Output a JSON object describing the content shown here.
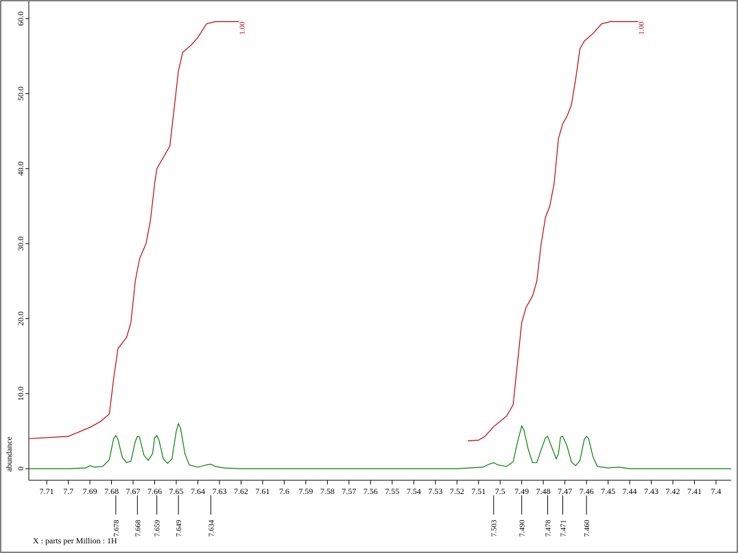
{
  "chart_data": {
    "type": "line",
    "x_label": "X : parts per Million : 1H",
    "y_label": "abundance",
    "xlim": [
      7.7183,
      7.393
    ],
    "ylim": [
      -1.55,
      62.3
    ],
    "xticks": [
      7.71,
      7.7,
      7.69,
      7.68,
      7.67,
      7.66,
      7.65,
      7.64,
      7.63,
      7.62,
      7.61,
      7.6,
      7.59,
      7.58,
      7.57,
      7.56,
      7.55,
      7.54,
      7.53,
      7.52,
      7.51,
      7.5,
      7.49,
      7.48,
      7.47,
      7.46,
      7.45,
      7.44,
      7.43,
      7.42,
      7.41,
      7.4
    ],
    "yticks": [
      0,
      {
        "value": 10,
        "label": "10.0"
      },
      {
        "value": 20,
        "label": "20.0"
      },
      {
        "value": 30,
        "label": "30.0"
      },
      {
        "value": 40,
        "label": "40.0"
      },
      {
        "value": 50,
        "label": "50.0"
      },
      {
        "value": 60,
        "label": "60.0"
      }
    ],
    "series": [
      {
        "color": "#008000",
        "x": [
          7.718,
          7.7,
          7.692,
          7.69,
          7.688,
          7.684,
          7.681,
          7.679,
          7.678,
          7.677,
          7.675,
          7.673,
          7.671,
          7.669,
          7.668,
          7.667,
          7.665,
          7.663,
          7.661,
          7.66,
          7.659,
          7.658,
          7.656,
          7.654,
          7.652,
          7.65,
          7.649,
          7.648,
          7.646,
          7.644,
          7.64,
          7.636,
          7.634,
          7.632,
          7.628,
          7.62,
          7.52,
          7.508,
          7.505,
          7.503,
          7.501,
          7.497,
          7.494,
          7.492,
          7.49,
          7.489,
          7.487,
          7.485,
          7.483,
          7.481,
          7.479,
          7.478,
          7.476,
          7.474,
          7.473,
          7.472,
          7.471,
          7.469,
          7.467,
          7.465,
          7.463,
          7.461,
          7.46,
          7.459,
          7.457,
          7.455,
          7.45,
          7.445,
          7.44,
          7.393
        ],
        "values": [
          0,
          0,
          0.1,
          0.4,
          0.2,
          0.3,
          1.2,
          4.0,
          4.4,
          3.9,
          1.5,
          0.8,
          1.0,
          3.6,
          4.3,
          4.2,
          1.8,
          1.1,
          2.0,
          4.1,
          4.4,
          3.8,
          1.3,
          0.7,
          1.3,
          5.0,
          6.0,
          5.4,
          2.0,
          0.5,
          0.2,
          0.5,
          0.6,
          0.3,
          0.1,
          0,
          0,
          0.2,
          0.6,
          0.8,
          0.5,
          0.3,
          0.9,
          3.5,
          5.7,
          5.2,
          2.6,
          0.8,
          0.8,
          2.5,
          4.1,
          4.3,
          2.8,
          1.3,
          2.0,
          4.2,
          4.3,
          3.0,
          0.9,
          0.4,
          1.1,
          3.9,
          4.3,
          4.0,
          1.6,
          0.3,
          0.1,
          0.2,
          0,
          0
        ]
      },
      {
        "color": "#c00000",
        "label": "1.00",
        "x": [
          7.718,
          7.7,
          7.69,
          7.685,
          7.681,
          7.679,
          7.677,
          7.673,
          7.671,
          7.669,
          7.667,
          7.664,
          7.662,
          7.66,
          7.659,
          7.656,
          7.653,
          7.651,
          7.649,
          7.647,
          7.643,
          7.64,
          7.636,
          7.632,
          7.621
        ],
        "values": [
          4.0,
          4.3,
          5.5,
          6.3,
          7.3,
          12,
          16,
          17.5,
          19.5,
          25,
          28,
          30,
          33,
          38,
          40,
          41.5,
          43,
          48,
          53,
          55.5,
          56.5,
          57.5,
          59.3,
          59.6,
          59.6
        ]
      },
      {
        "color": "#c00000",
        "label": "1.00",
        "x": [
          7.515,
          7.51,
          7.507,
          7.503,
          7.5,
          7.497,
          7.494,
          7.492,
          7.49,
          7.488,
          7.485,
          7.483,
          7.481,
          7.479,
          7.477,
          7.475,
          7.473,
          7.471,
          7.469,
          7.467,
          7.465,
          7.463,
          7.461,
          7.457,
          7.453,
          7.449,
          7.436
        ],
        "values": [
          3.7,
          3.8,
          4.3,
          5.6,
          6.3,
          7.0,
          8.5,
          14,
          19.5,
          21.5,
          23,
          25,
          30,
          33.5,
          35,
          38,
          44,
          46,
          47,
          48.5,
          52,
          56,
          57,
          58,
          59.3,
          59.6,
          59.6
        ]
      }
    ],
    "peaks": [
      7.678,
      7.668,
      7.659,
      7.649,
      7.634,
      7.503,
      {
        "value": 7.49,
        "label": "7.490"
      },
      7.478,
      7.471,
      {
        "value": 7.46,
        "label": "7.460"
      }
    ]
  }
}
